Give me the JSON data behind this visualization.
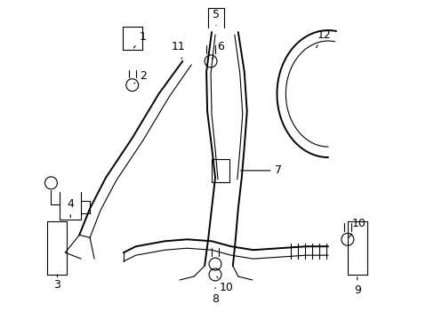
{
  "background": "#ffffff",
  "line_color": "#000000",
  "label_color": "#000000",
  "figsize": [
    4.89,
    3.6
  ],
  "dpi": 100
}
